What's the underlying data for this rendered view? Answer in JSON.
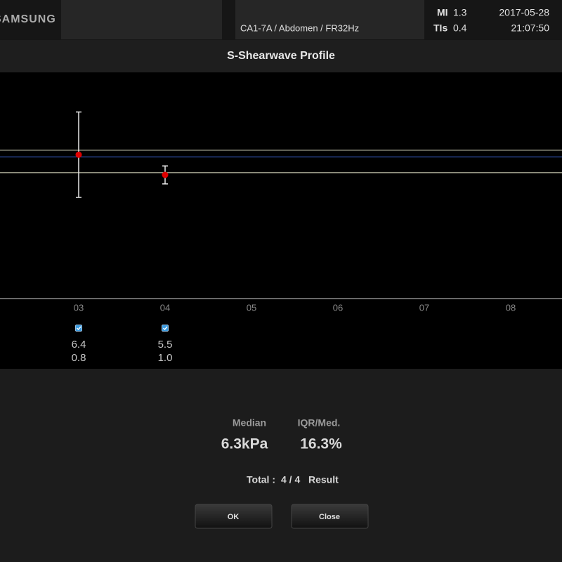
{
  "header": {
    "brand": "SAMSUNG",
    "probe": "CA1-7A / Abdomen / FR32Hz",
    "mi_label": "MI",
    "mi": "1.3",
    "tis_label": "TIs",
    "tis": "0.4",
    "date": "2017-05-28",
    "time": "21:07:50"
  },
  "title": "S-Shearwave Profile",
  "chart_data": {
    "type": "scatter",
    "categories": [
      "03",
      "04",
      "05",
      "06",
      "07",
      "08"
    ],
    "series": [
      {
        "color": "#e00000",
        "values": [
          6.4,
          5.5,
          null,
          null,
          null,
          null
        ],
        "errors": [
          1.9,
          0.4,
          null,
          null,
          null,
          null
        ]
      }
    ],
    "ylim": [
      0,
      10
    ],
    "hlines": [
      {
        "value": 6.6,
        "color": "#c8c8b0"
      },
      {
        "value": 6.3,
        "color": "#2f4fa8"
      },
      {
        "value": 5.6,
        "color": "#c8c8b0"
      }
    ]
  },
  "table": {
    "rows": [
      [
        "6.4",
        "5.5"
      ],
      [
        "0.8",
        "1.0"
      ]
    ]
  },
  "summary": {
    "median_label": "Median",
    "median": "6.3kPa",
    "iqr_label": "IQR/Med.",
    "iqr": "16.3%",
    "total_label": "Total :",
    "total": "4 / 4",
    "result": "Result"
  },
  "buttons": {
    "ok": "OK",
    "close": "Close"
  }
}
